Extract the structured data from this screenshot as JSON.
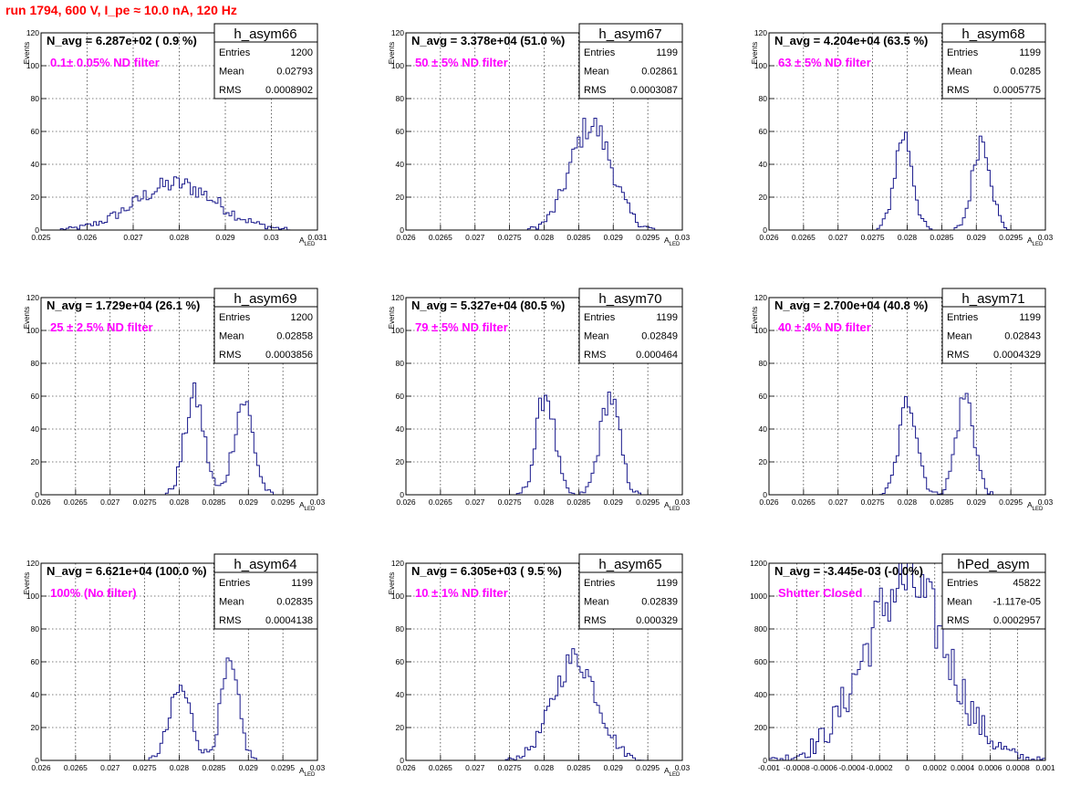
{
  "page": {
    "run_title": "run 1794,   600 V, I_pe ≈ 10.0 nA, 120 Hz"
  },
  "colors": {
    "histogram": "#1a1a8c",
    "title_text": "#ff0000",
    "filter_text": "#ff00ff",
    "grid": "#000000"
  },
  "chart_data": [
    {
      "type": "histogram",
      "name": "h_asym66",
      "navg": "N_avg = 6.287e+02 ( 0.9 %)",
      "filter": "0.1± 0.05% ND filter",
      "stats": {
        "entries": "1200",
        "mean": "0.02793",
        "rms": "0.0008902"
      },
      "xlabel": "A_LED",
      "ylabel": "Events",
      "xlim": [
        0.025,
        0.031
      ],
      "ylim": [
        0,
        120
      ],
      "xticks": [
        "0.025",
        "0.026",
        "0.027",
        "0.028",
        "0.029",
        "0.03",
        "0.031"
      ],
      "xtick_values": [
        0.025,
        0.026,
        0.027,
        0.028,
        0.029,
        0.03,
        0.031
      ],
      "yticks": [
        0,
        20,
        40,
        60,
        80,
        100,
        120
      ],
      "grid": true,
      "peaks": [
        {
          "mu": 0.02793,
          "sigma": 0.00088,
          "amp": 28
        }
      ]
    },
    {
      "type": "histogram",
      "name": "h_asym67",
      "navg": "N_avg = 3.378e+04 (51.0 %)",
      "filter": "50 ± 5% ND filter",
      "stats": {
        "entries": "1199",
        "mean": "0.02861",
        "rms": "0.0003087"
      },
      "xlabel": "A_LED",
      "ylabel": "Events",
      "xlim": [
        0.026,
        0.03
      ],
      "ylim": [
        0,
        120
      ],
      "xticks": [
        "0.026",
        "0.0265",
        "0.027",
        "0.0275",
        "0.028",
        "0.0285",
        "0.029",
        "0.0295",
        "0.03"
      ],
      "xtick_values": [
        0.026,
        0.0265,
        0.027,
        0.0275,
        0.028,
        0.0285,
        0.029,
        0.0295,
        0.03
      ],
      "yticks": [
        0,
        20,
        40,
        60,
        80,
        100,
        120
      ],
      "grid": true,
      "peaks": [
        {
          "mu": 0.02868,
          "sigma": 0.0003,
          "amp": 64
        }
      ]
    },
    {
      "type": "histogram",
      "name": "h_asym68",
      "navg": "N_avg = 4.204e+04 (63.5 %)",
      "filter": "63 ± 5% ND filter",
      "stats": {
        "entries": "1199",
        "mean": "0.0285",
        "rms": "0.0005775"
      },
      "xlabel": "A_LED",
      "ylabel": "Events",
      "xlim": [
        0.026,
        0.03
      ],
      "ylim": [
        0,
        120
      ],
      "xticks": [
        "0.026",
        "0.0265",
        "0.027",
        "0.0275",
        "0.028",
        "0.0285",
        "0.029",
        "0.0295",
        "0.03"
      ],
      "xtick_values": [
        0.026,
        0.0265,
        0.027,
        0.0275,
        0.028,
        0.0285,
        0.029,
        0.0295,
        0.03
      ],
      "yticks": [
        0,
        20,
        40,
        60,
        80,
        100,
        120
      ],
      "grid": true,
      "peaks": [
        {
          "mu": 0.02795,
          "sigma": 0.00013,
          "amp": 58
        },
        {
          "mu": 0.02908,
          "sigma": 0.00013,
          "amp": 56
        }
      ]
    },
    {
      "type": "histogram",
      "name": "h_asym69",
      "navg": "N_avg = 1.729e+04 (26.1 %)",
      "filter": "25 ± 2.5% ND filter",
      "stats": {
        "entries": "1200",
        "mean": "0.02858",
        "rms": "0.0003856"
      },
      "xlabel": "A_LED",
      "ylabel": "Events",
      "xlim": [
        0.026,
        0.03
      ],
      "ylim": [
        0,
        120
      ],
      "xticks": [
        "0.026",
        "0.0265",
        "0.027",
        "0.0275",
        "0.028",
        "0.0285",
        "0.029",
        "0.0295",
        "0.03"
      ],
      "xtick_values": [
        0.026,
        0.0265,
        0.027,
        0.0275,
        0.028,
        0.0285,
        0.029,
        0.0295,
        0.03
      ],
      "yticks": [
        0,
        20,
        40,
        60,
        80,
        100,
        120
      ],
      "grid": true,
      "peaks": [
        {
          "mu": 0.02822,
          "sigma": 0.00014,
          "amp": 60
        },
        {
          "mu": 0.02893,
          "sigma": 0.00014,
          "amp": 57
        }
      ]
    },
    {
      "type": "histogram",
      "name": "h_asym70",
      "navg": "N_avg = 5.327e+04 (80.5 %)",
      "filter": "79 ± 5% ND filter",
      "stats": {
        "entries": "1199",
        "mean": "0.02849",
        "rms": "0.000464"
      },
      "xlabel": "A_LED",
      "ylabel": "Events",
      "xlim": [
        0.026,
        0.03
      ],
      "ylim": [
        0,
        120
      ],
      "xticks": [
        "0.026",
        "0.0265",
        "0.027",
        "0.0275",
        "0.028",
        "0.0285",
        "0.029",
        "0.0295",
        "0.03"
      ],
      "xtick_values": [
        0.026,
        0.0265,
        0.027,
        0.0275,
        0.028,
        0.0285,
        0.029,
        0.0295,
        0.03
      ],
      "yticks": [
        0,
        20,
        40,
        60,
        80,
        100,
        120
      ],
      "grid": true,
      "peaks": [
        {
          "mu": 0.02802,
          "sigma": 0.00013,
          "amp": 62
        },
        {
          "mu": 0.02895,
          "sigma": 0.00014,
          "amp": 60
        }
      ]
    },
    {
      "type": "histogram",
      "name": "h_asym71",
      "navg": "N_avg = 2.700e+04 (40.8 %)",
      "filter": "40 ± 4% ND filter",
      "stats": {
        "entries": "1199",
        "mean": "0.02843",
        "rms": "0.0004329"
      },
      "xlabel": "A_LED",
      "ylabel": "Events",
      "xlim": [
        0.026,
        0.03
      ],
      "ylim": [
        0,
        120
      ],
      "xticks": [
        "0.026",
        "0.0265",
        "0.027",
        "0.0275",
        "0.028",
        "0.0285",
        "0.029",
        "0.0295",
        "0.03"
      ],
      "xtick_values": [
        0.026,
        0.0265,
        0.027,
        0.0275,
        0.028,
        0.0285,
        0.029,
        0.0295,
        0.03
      ],
      "yticks": [
        0,
        20,
        40,
        60,
        80,
        100,
        120
      ],
      "grid": true,
      "peaks": [
        {
          "mu": 0.02802,
          "sigma": 0.00013,
          "amp": 58
        },
        {
          "mu": 0.02884,
          "sigma": 0.00013,
          "amp": 60
        }
      ]
    },
    {
      "type": "histogram",
      "name": "h_asym64",
      "navg": "N_avg = 6.621e+04 (100.0 %)",
      "filter": "100% (No filter)",
      "stats": {
        "entries": "1199",
        "mean": "0.02835",
        "rms": "0.0004138"
      },
      "xlabel": "A_LED",
      "ylabel": "Events",
      "xlim": [
        0.026,
        0.03
      ],
      "ylim": [
        0,
        120
      ],
      "xticks": [
        "0.026",
        "0.0265",
        "0.027",
        "0.0275",
        "0.028",
        "0.0285",
        "0.029",
        "0.0295",
        "0.03"
      ],
      "xtick_values": [
        0.026,
        0.0265,
        0.027,
        0.0275,
        0.028,
        0.0285,
        0.029,
        0.0295,
        0.03
      ],
      "yticks": [
        0,
        20,
        40,
        60,
        80,
        100,
        120
      ],
      "grid": true,
      "peaks": [
        {
          "mu": 0.02802,
          "sigma": 0.00016,
          "amp": 43
        },
        {
          "mu": 0.02873,
          "sigma": 0.00013,
          "amp": 56
        }
      ]
    },
    {
      "type": "histogram",
      "name": "h_asym65",
      "navg": "N_avg = 6.305e+03 ( 9.5 %)",
      "filter": "10 ± 1% ND filter",
      "stats": {
        "entries": "1199",
        "mean": "0.02839",
        "rms": "0.000329"
      },
      "xlabel": "A_LED",
      "ylabel": "Events",
      "xlim": [
        0.026,
        0.03
      ],
      "ylim": [
        0,
        120
      ],
      "xticks": [
        "0.026",
        "0.0265",
        "0.027",
        "0.0275",
        "0.028",
        "0.0285",
        "0.029",
        "0.0295",
        "0.03"
      ],
      "xtick_values": [
        0.026,
        0.0265,
        0.027,
        0.0275,
        0.028,
        0.0285,
        0.029,
        0.0295,
        0.03
      ],
      "yticks": [
        0,
        20,
        40,
        60,
        80,
        100,
        120
      ],
      "grid": true,
      "peaks": [
        {
          "mu": 0.02845,
          "sigma": 0.00032,
          "amp": 62
        }
      ]
    },
    {
      "type": "histogram",
      "name": "hPed_asym",
      "navg": "N_avg = -3.445e-03 (-0.0%)",
      "filter": "Shutter Closed",
      "stats": {
        "entries": "45822",
        "mean": "-1.117e-05",
        "rms": "0.0002957"
      },
      "xlabel": "",
      "ylabel": "",
      "xlim": [
        -0.001,
        0.001
      ],
      "ylim": [
        0,
        1200
      ],
      "xticks": [
        "-0.001",
        "-0.0008",
        "-0.0006",
        "-0.0004",
        "-0.0002",
        "0",
        "0.0002",
        "0.0004",
        "0.0006",
        "0.0008",
        "0.001"
      ],
      "xtick_values": [
        -0.001,
        -0.0008,
        -0.0006,
        -0.0004,
        -0.0002,
        0,
        0.0002,
        0.0004,
        0.0006,
        0.0008,
        0.001
      ],
      "yticks": [
        0,
        200,
        400,
        600,
        800,
        1000,
        1200
      ],
      "grid": true,
      "peaks": [
        {
          "mu": -1e-05,
          "sigma": 0.0003,
          "amp": 1080
        }
      ]
    }
  ],
  "labels": {
    "entries": "Entries",
    "mean": "Mean",
    "rms": "RMS"
  }
}
